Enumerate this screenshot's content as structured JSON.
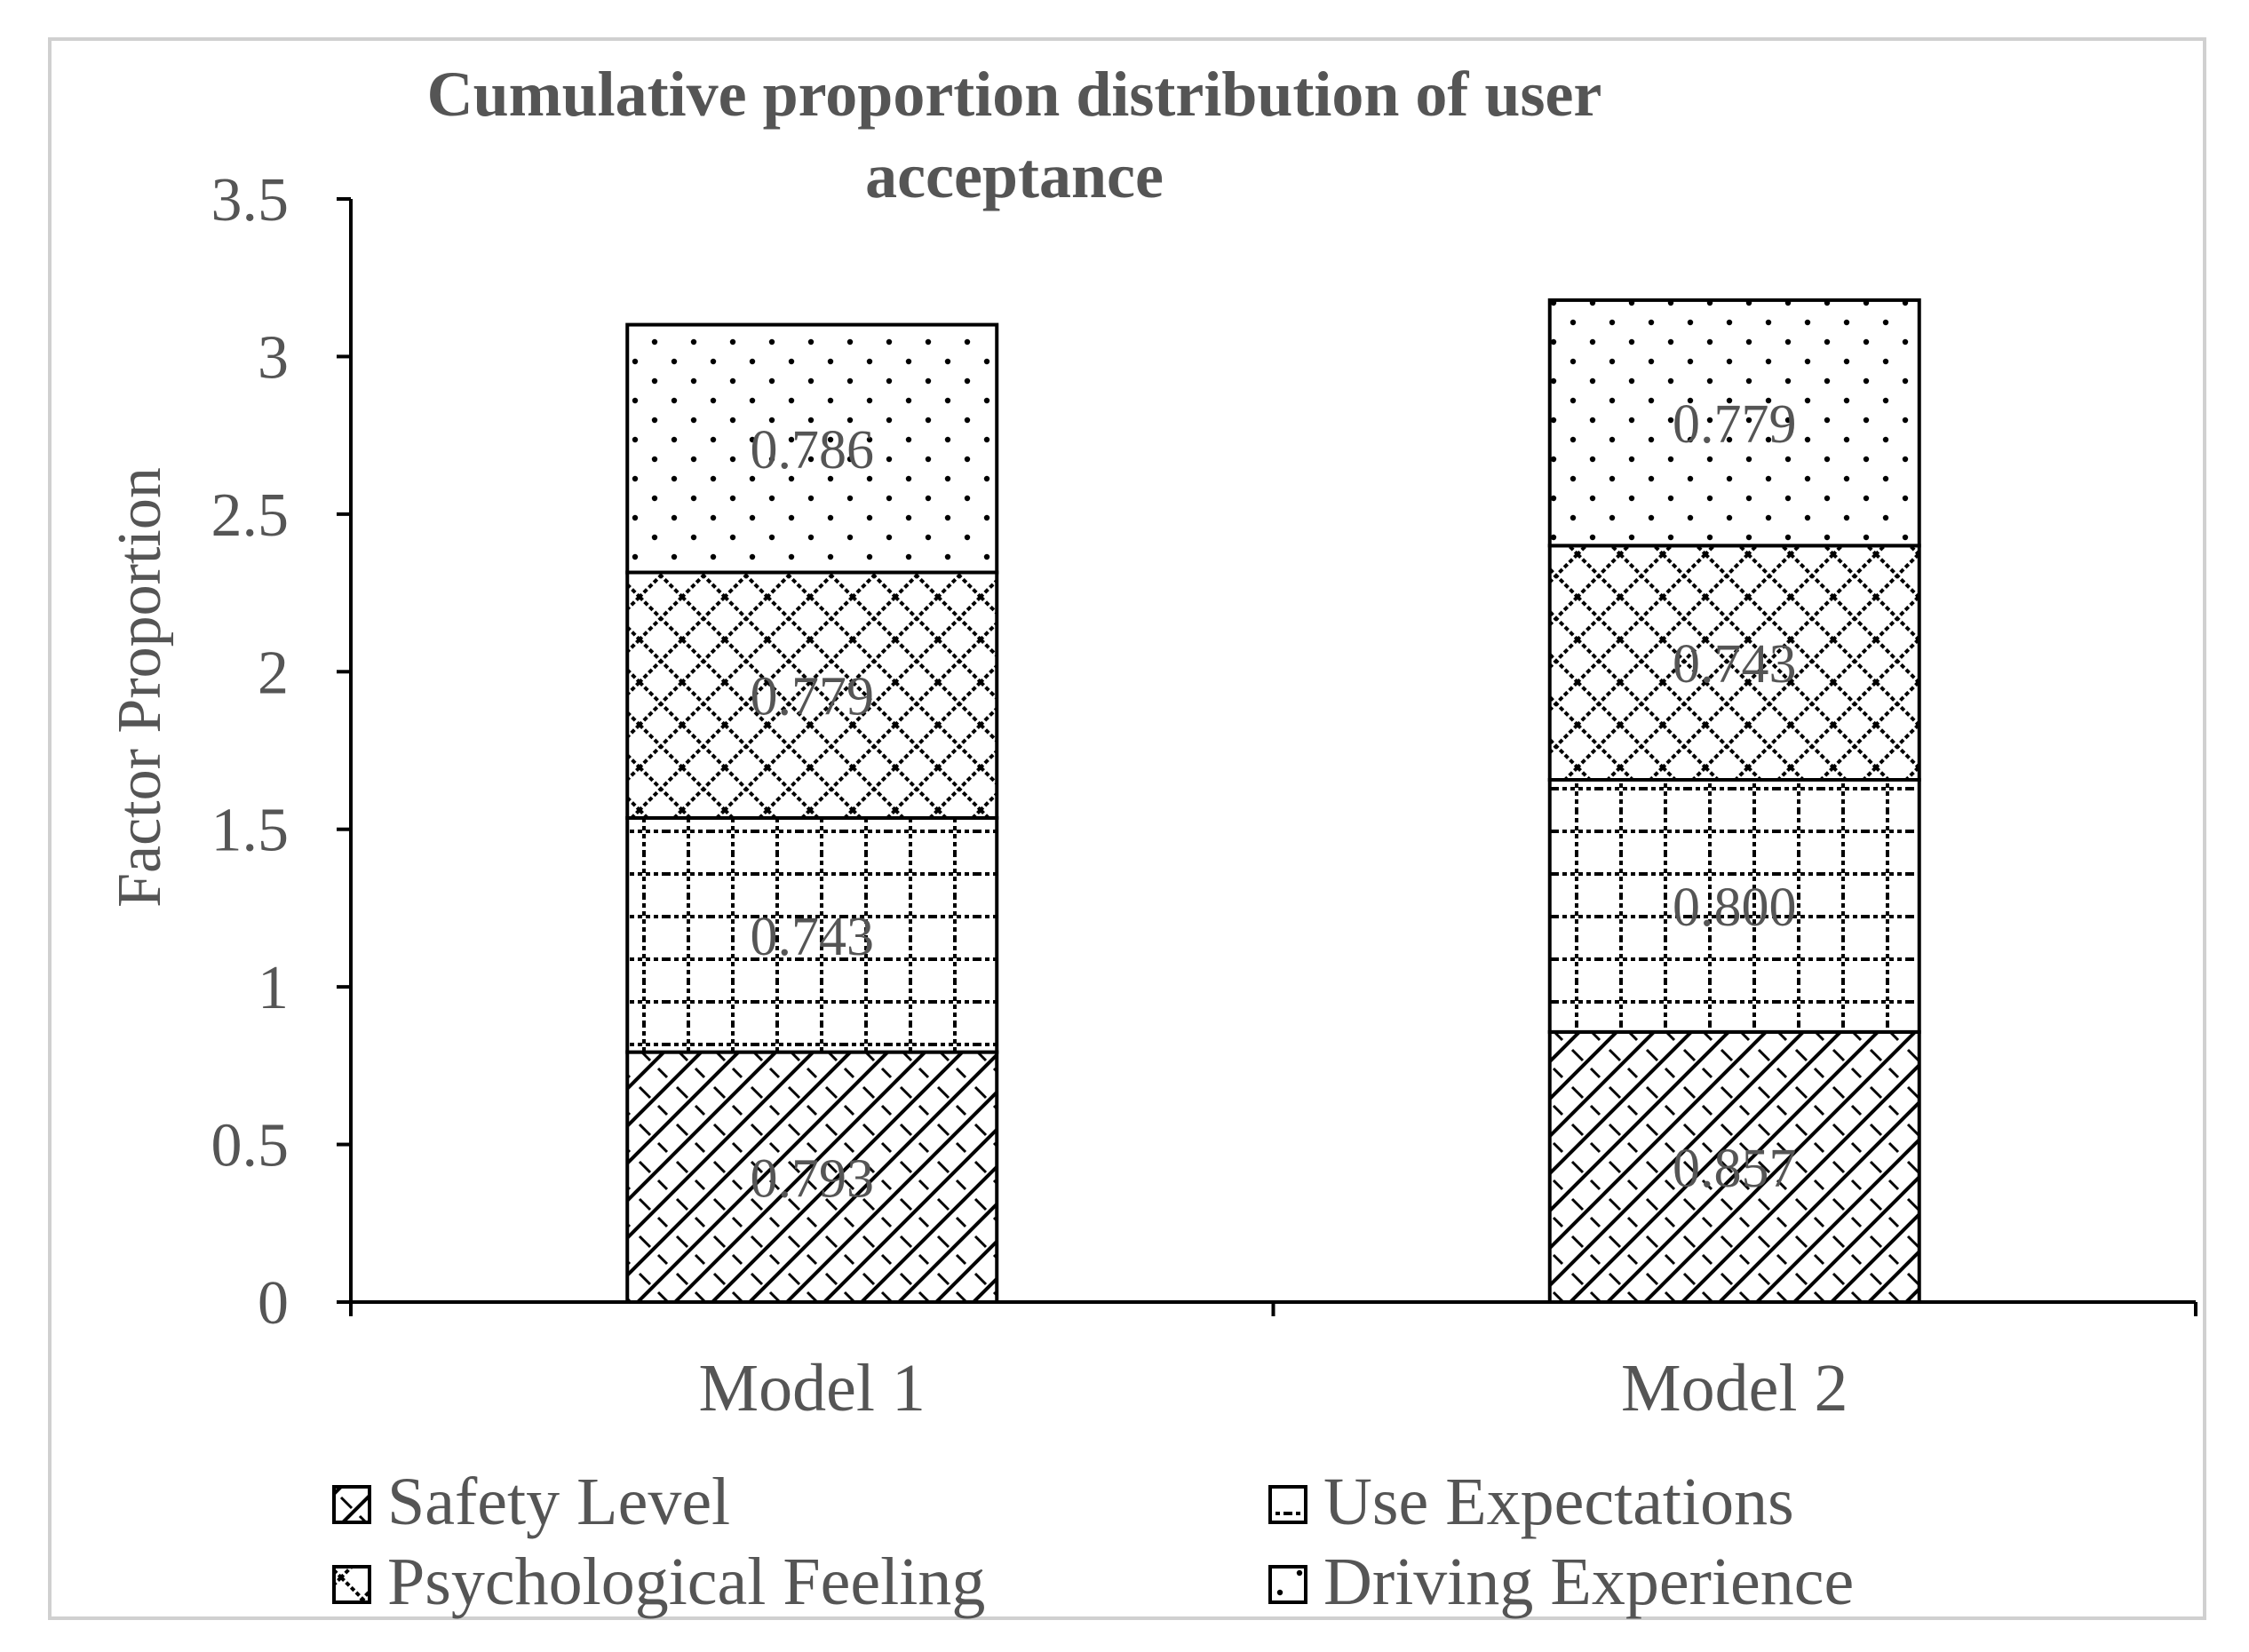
{
  "chart_data": {
    "type": "bar",
    "stacked": true,
    "title": "Cumulative proportion distribution of user acceptance",
    "title_lines": [
      "Cumulative proportion distribution of user",
      "acceptance"
    ],
    "xlabel": "",
    "ylabel": "Factor Proportion",
    "ylim": [
      0,
      3.5
    ],
    "yticks": [
      "0",
      "0.5",
      "1",
      "1.5",
      "2",
      "2.5",
      "3",
      "3.5"
    ],
    "ytick_values": [
      0,
      0.5,
      1,
      1.5,
      2,
      2.5,
      3,
      3.5
    ],
    "categories": [
      "Model 1",
      "Model 2"
    ],
    "series": [
      {
        "name": "Safety Level",
        "pattern": "diagonal",
        "values": [
          0.793,
          0.857
        ],
        "labels": [
          "0.793",
          "0.857"
        ]
      },
      {
        "name": "Use Expectations",
        "pattern": "grid",
        "values": [
          0.743,
          0.8
        ],
        "labels": [
          "0.743",
          "0.800"
        ]
      },
      {
        "name": "Psychological Feeling",
        "pattern": "diamond",
        "values": [
          0.779,
          0.743
        ],
        "labels": [
          "0.779",
          "0.743"
        ]
      },
      {
        "name": "Driving Experience",
        "pattern": "dots",
        "values": [
          0.786,
          0.779
        ],
        "labels": [
          "0.786",
          "0.779"
        ]
      }
    ],
    "legend": {
      "position": "bottom",
      "rows": [
        [
          "Safety Level",
          "Use Expectations"
        ],
        [
          "Psychological Feeling",
          "Driving Experience"
        ]
      ]
    },
    "grid": false,
    "colors": {
      "text": "#555555",
      "bar_stroke": "#000000",
      "frame": "#d0d0d0"
    }
  }
}
